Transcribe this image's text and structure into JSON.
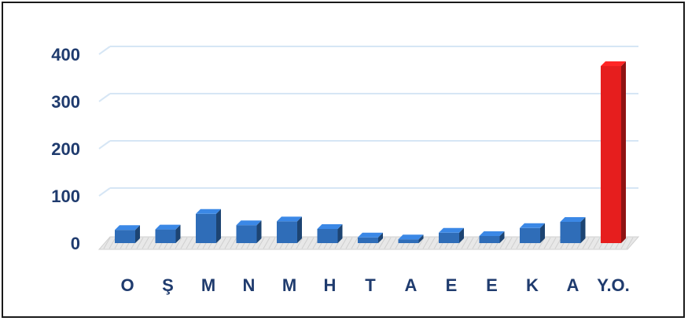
{
  "chart_data": {
    "type": "bar",
    "title": "",
    "xlabel": "",
    "ylabel": "",
    "categories": [
      "O",
      "Ş",
      "M",
      "N",
      "M",
      "H",
      "T",
      "A",
      "E",
      "E",
      "K",
      "A",
      "Y.O."
    ],
    "values": [
      28,
      29,
      62,
      38,
      46,
      30,
      12,
      8,
      22,
      15,
      32,
      45,
      375
    ],
    "ylim": [
      0,
      400
    ],
    "yticks": [
      0,
      100,
      200,
      300,
      400
    ],
    "grid": true,
    "colors": {
      "default_bar": "#2f6db8",
      "highlight_bar": "#e61e1e",
      "tick_text": "#1f3b6e",
      "gridline": "#d6e6f5"
    },
    "highlight_index": 12
  }
}
